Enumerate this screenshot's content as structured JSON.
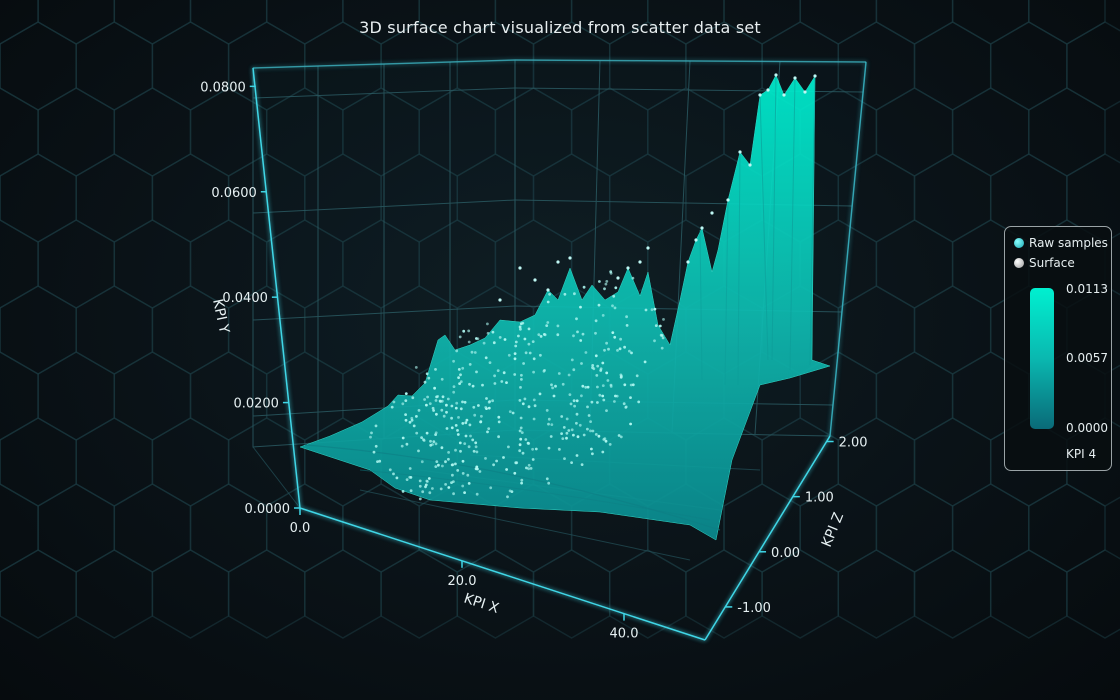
{
  "chart_data": {
    "type": "surface",
    "title": "3D surface chart visualized from scatter data set",
    "axes": {
      "x": {
        "label": "KPI X",
        "ticks": [
          "0.0",
          "20.0",
          "40.0"
        ],
        "range": [
          0,
          50
        ]
      },
      "y": {
        "label": "KPI Y",
        "ticks": [
          "0.0000",
          "0.0200",
          "0.0400",
          "0.0600",
          "0.0800"
        ],
        "range": [
          0,
          0.085
        ]
      },
      "z": {
        "label": "KPI Z",
        "ticks": [
          "-1.00",
          "0.00",
          "1.00",
          "2.00"
        ],
        "range": [
          -1.6,
          2.1
        ]
      }
    },
    "series": [
      {
        "name": "Raw samples",
        "type": "scatter"
      },
      {
        "name": "Surface",
        "type": "surface"
      }
    ],
    "colorbar": {
      "title": "KPI 4",
      "labels": [
        "0.0113",
        "0.0057",
        "0.0000"
      ],
      "range": [
        0,
        0.0113
      ]
    },
    "legend_position": "right",
    "colors": {
      "surface_high": "#00f0d0",
      "surface_low": "#0a6a78",
      "grid": "#2f6f78",
      "axis": "#3fd6e6"
    }
  }
}
